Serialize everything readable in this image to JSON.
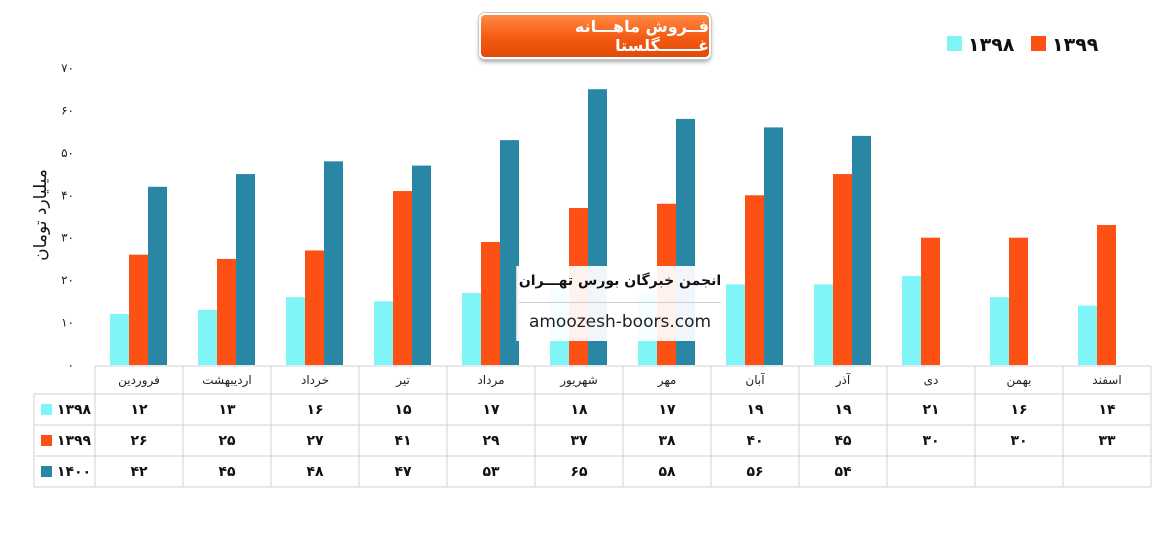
{
  "chart_data": {
    "type": "bar",
    "title": "فــروش ماهـــانه غـــــــگلستا",
    "ylabel": "میلیارد تومان",
    "ylim": [
      0,
      70
    ],
    "yticks": [
      "۰",
      "۱۰",
      "۲۰",
      "۳۰",
      "۴۰",
      "۵۰",
      "۶۰",
      "۷۰"
    ],
    "categories": [
      "فروردین",
      "اردیبهشت",
      "خرداد",
      "تیر",
      "مرداد",
      "شهریور",
      "مهر",
      "آبان",
      "آذر",
      "دی",
      "بهمن",
      "اسفند"
    ],
    "series": [
      {
        "name": "۱۳۹۸",
        "color": "#7ff5f8",
        "values": [
          12,
          13,
          16,
          15,
          17,
          18,
          17,
          19,
          19,
          21,
          16,
          14
        ],
        "labels": [
          "۱۲",
          "۱۳",
          "۱۶",
          "۱۵",
          "۱۷",
          "۱۸",
          "۱۷",
          "۱۹",
          "۱۹",
          "۲۱",
          "۱۶",
          "۱۴"
        ]
      },
      {
        "name": "۱۳۹۹",
        "color": "#fd5014",
        "values": [
          26,
          25,
          27,
          41,
          29,
          37,
          38,
          40,
          45,
          30,
          30,
          33
        ],
        "labels": [
          "۲۶",
          "۲۵",
          "۲۷",
          "۴۱",
          "۲۹",
          "۳۷",
          "۳۸",
          "۴۰",
          "۴۵",
          "۳۰",
          "۳۰",
          "۳۳"
        ]
      },
      {
        "name": "۱۴۰۰",
        "color": "#2986a4",
        "values": [
          42,
          45,
          48,
          47,
          53,
          65,
          58,
          56,
          54,
          null,
          null,
          null
        ],
        "labels": [
          "۴۲",
          "۴۵",
          "۴۸",
          "۴۷",
          "۵۳",
          "۶۵",
          "۵۸",
          "۵۶",
          "۵۴",
          "",
          "",
          ""
        ]
      }
    ],
    "legend": [
      "۱۳۹۹",
      "۱۳۹۸"
    ],
    "legend_position": "top-right",
    "grid": false,
    "data_table": true
  },
  "watermark": {
    "line1": "انجمن خبرگان بورس تهـــران",
    "line2": "amoozesh-boors.com"
  }
}
